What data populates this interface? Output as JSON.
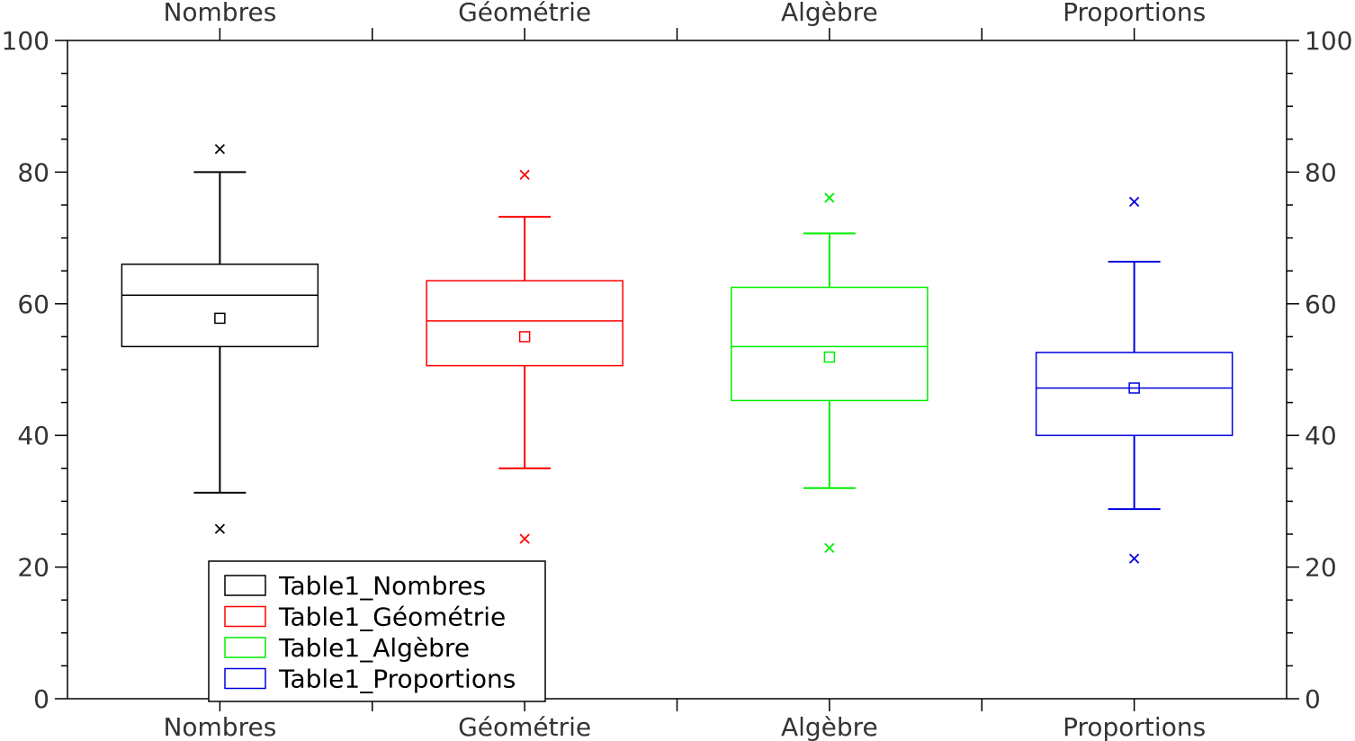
{
  "chart_data": {
    "type": "box",
    "title": "",
    "xlabel": "",
    "ylabel": "",
    "ylim": [
      0,
      100
    ],
    "yticks": [
      0,
      20,
      40,
      60,
      80,
      100
    ],
    "grid": false,
    "legend_position": "bottom-left",
    "categories": [
      "Nombres",
      "Géométrie",
      "Algèbre",
      "Proportions"
    ],
    "series": [
      {
        "name": "Table1_Nombres",
        "color": "#000000",
        "whisker_low": 31.3,
        "q1": 53.5,
        "median": 61.3,
        "q3": 66.0,
        "whisker_high": 80.0,
        "mean": 57.8,
        "outliers": [
          83.5,
          25.8
        ]
      },
      {
        "name": "Table1_Géométrie",
        "color": "#ff0000",
        "whisker_low": 35.0,
        "q1": 50.6,
        "median": 57.4,
        "q3": 63.5,
        "whisker_high": 73.2,
        "mean": 55.0,
        "outliers": [
          79.6,
          24.3
        ]
      },
      {
        "name": "Table1_Algèbre",
        "color": "#00ee00",
        "whisker_low": 32.0,
        "q1": 45.3,
        "median": 53.5,
        "q3": 62.5,
        "whisker_high": 70.7,
        "mean": 51.9,
        "outliers": [
          76.1,
          22.9
        ]
      },
      {
        "name": "Table1_Proportions",
        "color": "#0000dd",
        "whisker_low": 28.8,
        "q1": 40.0,
        "median": 47.2,
        "q3": 52.6,
        "whisker_high": 66.4,
        "mean": 47.2,
        "outliers": [
          75.5,
          21.3
        ]
      }
    ]
  }
}
